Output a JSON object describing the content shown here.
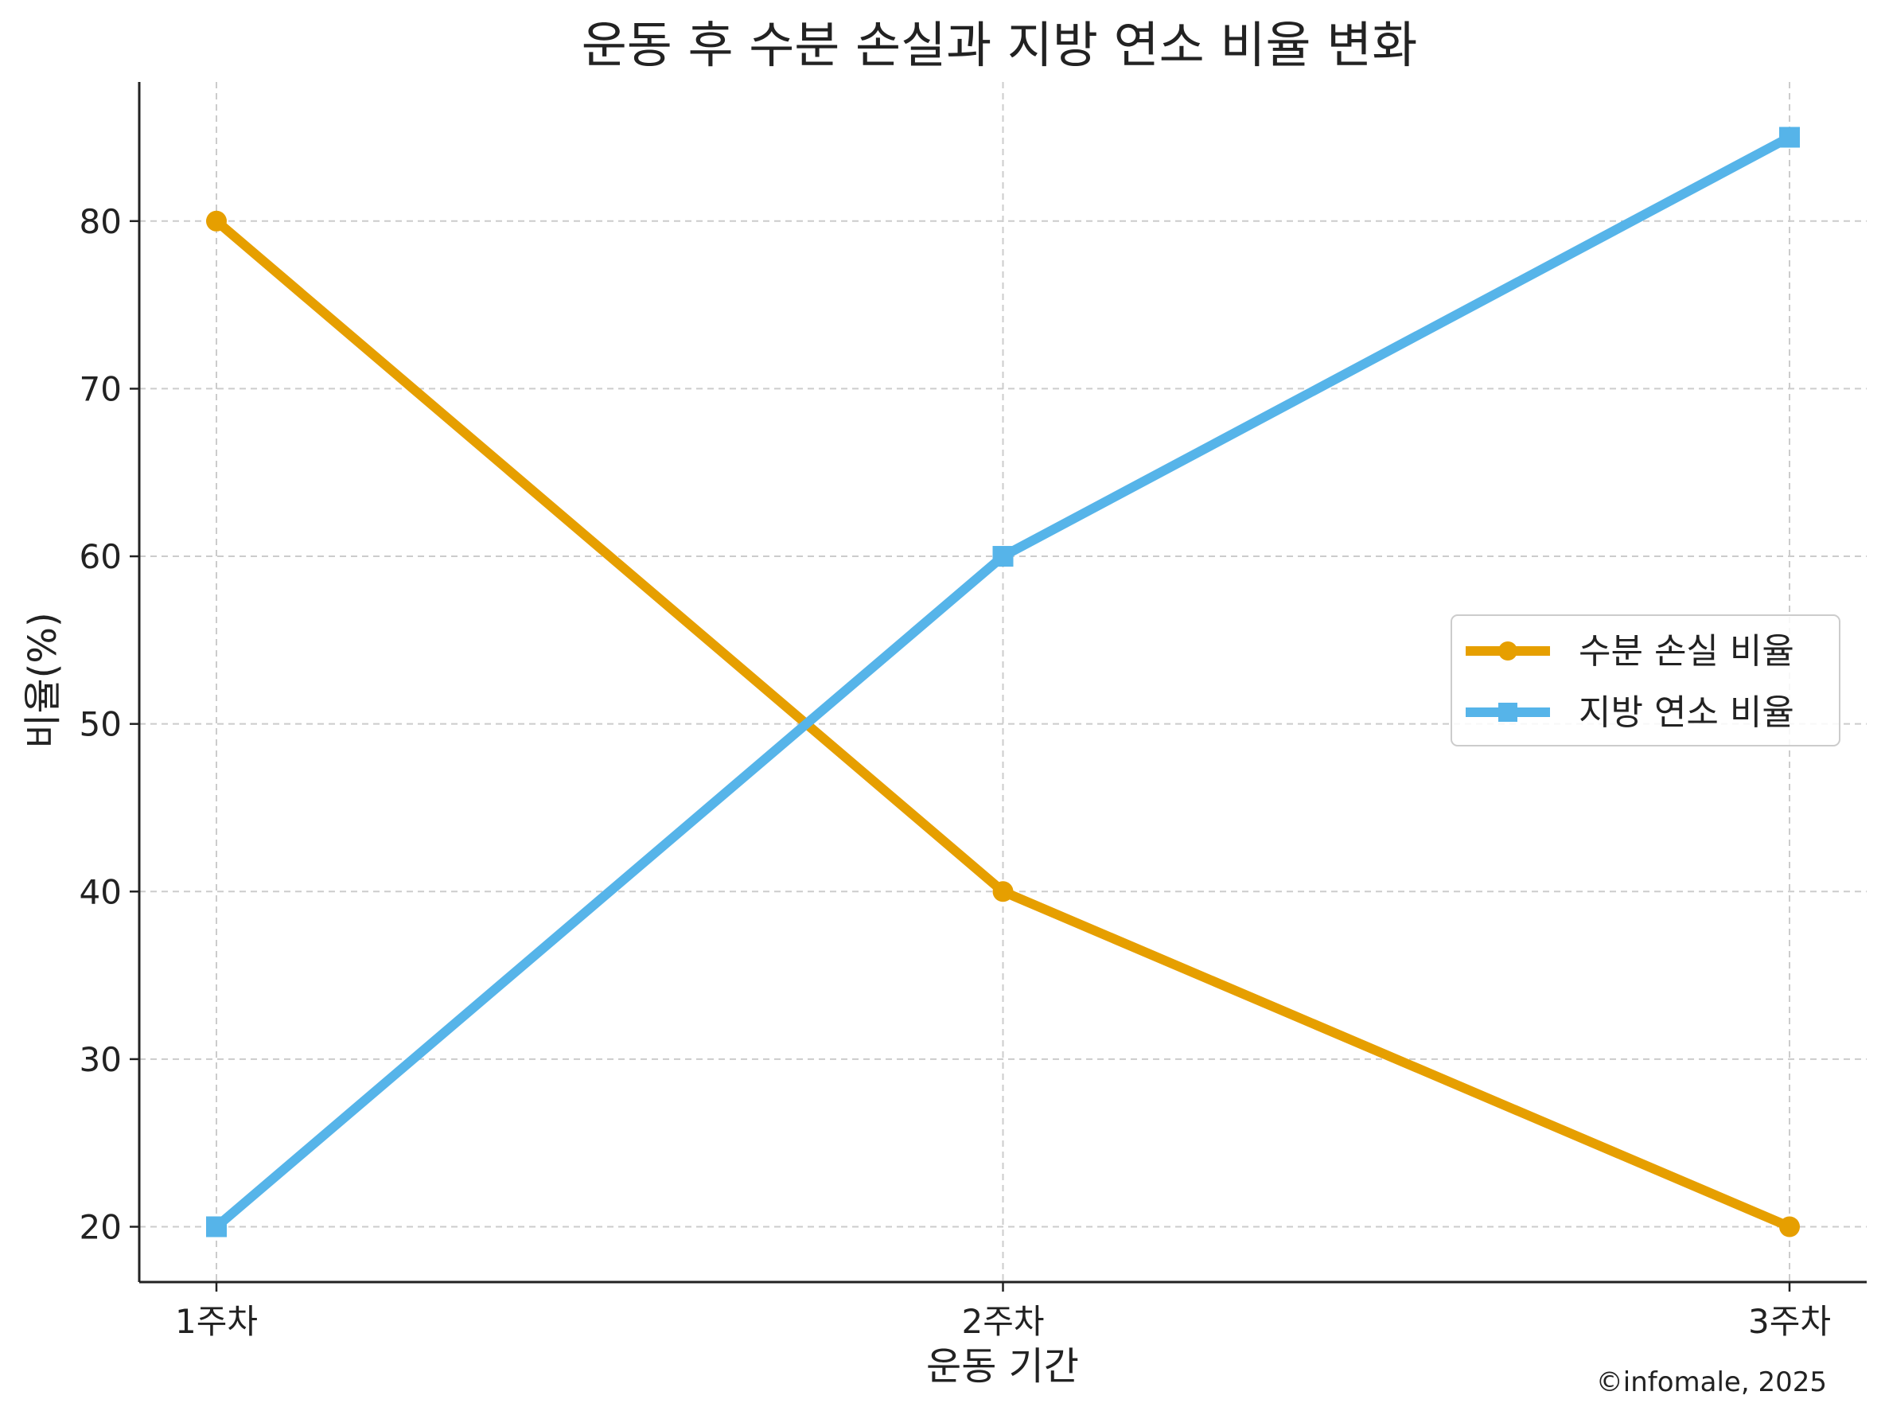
{
  "chart_data": {
    "type": "line",
    "title": "운동 후 수분 손실과 지방 연소 비율 변화",
    "xlabel": "운동 기간",
    "ylabel": "비율(%)",
    "categories": [
      "1주차",
      "2주차",
      "3주차"
    ],
    "ylim": [
      16.7,
      88.3
    ],
    "yticks": [
      20,
      30,
      40,
      50,
      60,
      70,
      80
    ],
    "grid": true,
    "legend_position": "center-right",
    "series": [
      {
        "name": "수분 손실 비율",
        "values": [
          80,
          40,
          20
        ],
        "color": "#E69F00",
        "marker": "circle"
      },
      {
        "name": "지방 연소 비율",
        "values": [
          20,
          60,
          85
        ],
        "color": "#56B4E9",
        "marker": "square"
      }
    ]
  },
  "credit": "©infomale, 2025"
}
